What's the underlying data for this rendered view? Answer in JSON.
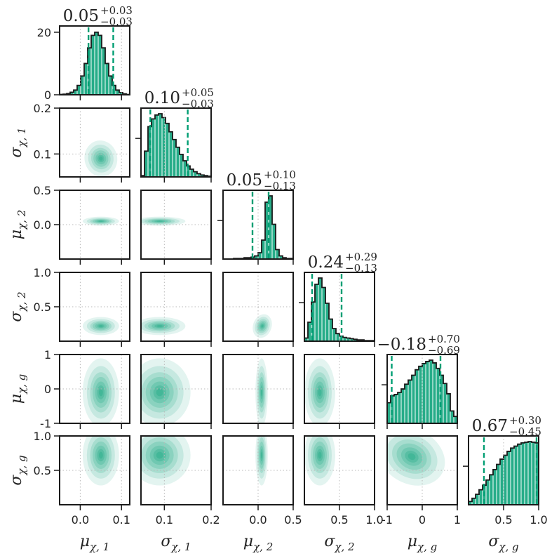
{
  "chart_data": {
    "type": "corner",
    "accent_color": "#009E73",
    "parameters": [
      {
        "base": "μ",
        "sub": "χ, 1",
        "range": [
          -0.05,
          0.12
        ],
        "ticks": [
          0.0,
          0.1
        ],
        "tick_labels": [
          "0.0",
          "0.1"
        ],
        "summary": {
          "median": "0.05",
          "plus": "+0.03",
          "minus": "−0.03"
        }
      },
      {
        "base": "σ",
        "sub": "χ, 1",
        "range": [
          0.05,
          0.2
        ],
        "ticks": [
          0.1,
          0.2
        ],
        "tick_labels": [
          "0.1",
          "0.2"
        ],
        "summary": {
          "median": "0.10",
          "plus": "+0.05",
          "minus": "−0.03"
        }
      },
      {
        "base": "μ",
        "sub": "χ, 2",
        "range": [
          -0.5,
          0.5
        ],
        "ticks": [
          0.0,
          0.5
        ],
        "tick_labels": [
          "0.0",
          "0.5"
        ],
        "summary": {
          "median": "0.05",
          "plus": "+0.10",
          "minus": "−0.13"
        }
      },
      {
        "base": "σ",
        "sub": "χ, 2",
        "range": [
          0.0,
          1.0
        ],
        "ticks": [
          0.5,
          1.0
        ],
        "tick_labels": [
          "0.5",
          "1.0"
        ],
        "summary": {
          "median": "0.24",
          "plus": "+0.29",
          "minus": "−0.13"
        }
      },
      {
        "base": "μ",
        "sub": "χ, g",
        "range": [
          -1.0,
          1.0
        ],
        "ticks": [
          -1,
          0,
          1
        ],
        "tick_labels": [
          "-1",
          "0",
          "1"
        ],
        "summary": {
          "median": "−0.18",
          "plus": "+0.70",
          "minus": "−0.69"
        }
      },
      {
        "base": "σ",
        "sub": "χ, g",
        "range": [
          0.0,
          1.0
        ],
        "ticks": [
          0.5,
          1.0
        ],
        "tick_labels": [
          "0.5",
          "1.0"
        ],
        "summary": {
          "median": "0.67",
          "plus": "+0.30",
          "minus": "−0.45"
        }
      }
    ],
    "y_axis_ranges": [
      [
        0,
        22
      ],
      [
        0.05,
        0.2
      ],
      [
        -0.5,
        0.5
      ],
      [
        0.0,
        1.0
      ],
      [
        -1.0,
        1.0
      ],
      [
        0.0,
        1.0
      ]
    ],
    "y_ticks": [
      {
        "ticks": [
          0,
          20
        ],
        "tick_labels": [
          "0",
          "20"
        ]
      },
      {
        "ticks": [
          0.1,
          0.2
        ],
        "tick_labels": [
          "0.1",
          "0.2"
        ]
      },
      {
        "ticks": [
          0.0,
          0.5
        ],
        "tick_labels": [
          "0.0",
          "0.5"
        ]
      },
      {
        "ticks": [
          0.5,
          1.0
        ],
        "tick_labels": [
          "0.5",
          "1.0"
        ]
      },
      {
        "ticks": [
          -1,
          0,
          1
        ],
        "tick_labels": [
          "-1",
          "0",
          "1"
        ]
      },
      {
        "ticks": [
          0.5,
          1.0
        ],
        "tick_labels": [
          "0.5",
          "1.0"
        ]
      }
    ],
    "diagonal_histograms": [
      {
        "edges": [
          -0.05,
          0.12
        ],
        "quantiles": [
          0.02,
          0.08
        ],
        "values": [
          0.1,
          0.2,
          0.4,
          0.8,
          1.5,
          3,
          6,
          10,
          15,
          19,
          20,
          19,
          15,
          10,
          6,
          3,
          1.5,
          0.7,
          0.3,
          0.1
        ]
      },
      {
        "edges": [
          0.05,
          0.2
        ],
        "quantiles": [
          0.07,
          0.15
        ],
        "values": [
          0.02,
          0.4,
          0.78,
          0.9,
          0.96,
          0.98,
          0.92,
          0.83,
          0.7,
          0.58,
          0.46,
          0.35,
          0.25,
          0.17,
          0.12,
          0.08,
          0.05,
          0.03,
          0.02,
          0.01
        ]
      },
      {
        "edges": [
          -0.5,
          0.5
        ],
        "quantiles": [
          -0.08,
          0.15
        ],
        "values": [
          0.0,
          0.0,
          0.0,
          0.01,
          0.01,
          0.01,
          0.02,
          0.02,
          0.03,
          0.05,
          0.1,
          0.3,
          0.9,
          1.0,
          0.55,
          0.15,
          0.05,
          0.02,
          0.01,
          0.01
        ]
      },
      {
        "edges": [
          0.0,
          1.0
        ],
        "quantiles": [
          0.11,
          0.53
        ],
        "values": [
          0.05,
          0.3,
          0.62,
          0.9,
          1.0,
          0.85,
          0.6,
          0.35,
          0.2,
          0.12,
          0.08,
          0.06,
          0.05,
          0.04,
          0.03,
          0.02,
          0.02,
          0.01,
          0.01,
          0.01
        ]
      },
      {
        "edges": [
          -1.0,
          1.0
        ],
        "quantiles": [
          -0.87,
          0.52
        ],
        "values": [
          0.3,
          0.4,
          0.42,
          0.45,
          0.5,
          0.57,
          0.63,
          0.7,
          0.78,
          0.83,
          0.87,
          0.9,
          0.92,
          0.88,
          0.8,
          0.7,
          0.58,
          0.43,
          0.18,
          0.1
        ]
      },
      {
        "edges": [
          0.0,
          1.0
        ],
        "quantiles": [
          0.22,
          0.97
        ],
        "values": [
          0.05,
          0.1,
          0.16,
          0.23,
          0.3,
          0.38,
          0.46,
          0.54,
          0.62,
          0.7,
          0.76,
          0.82,
          0.87,
          0.9,
          0.93,
          0.95,
          0.96,
          0.97,
          0.96,
          0.95
        ]
      }
    ],
    "joint_densities": [
      {
        "row": 1,
        "col": 0,
        "cx": 0.05,
        "cy": 0.09,
        "sx": 0.018,
        "sy": 0.018,
        "rho": 0.3
      },
      {
        "row": 2,
        "col": 0,
        "cx": 0.05,
        "cy": 0.05,
        "sx": 0.02,
        "sy": 0.03,
        "rho": 0.0
      },
      {
        "row": 2,
        "col": 1,
        "cx": 0.09,
        "cy": 0.05,
        "sx": 0.025,
        "sy": 0.03,
        "rho": 0.0
      },
      {
        "row": 3,
        "col": 0,
        "cx": 0.05,
        "cy": 0.22,
        "sx": 0.02,
        "sy": 0.06,
        "rho": 0.0
      },
      {
        "row": 3,
        "col": 1,
        "cx": 0.09,
        "cy": 0.22,
        "sx": 0.025,
        "sy": 0.06,
        "rho": 0.0
      },
      {
        "row": 3,
        "col": 2,
        "cx": 0.06,
        "cy": 0.22,
        "sx": 0.06,
        "sy": 0.08,
        "rho": -0.5
      },
      {
        "row": 4,
        "col": 0,
        "cx": 0.05,
        "cy": -0.1,
        "sx": 0.02,
        "sy": 0.45,
        "rho": 0.0
      },
      {
        "row": 4,
        "col": 1,
        "cx": 0.09,
        "cy": -0.1,
        "sx": 0.03,
        "sy": 0.45,
        "rho": 0.0
      },
      {
        "row": 4,
        "col": 2,
        "cx": 0.05,
        "cy": -0.1,
        "sx": 0.04,
        "sy": 0.45,
        "rho": 0.0
      },
      {
        "row": 4,
        "col": 3,
        "cx": 0.22,
        "cy": -0.1,
        "sx": 0.1,
        "sy": 0.45,
        "rho": 0.0
      },
      {
        "row": 5,
        "col": 0,
        "cx": 0.05,
        "cy": 0.72,
        "sx": 0.02,
        "sy": 0.2,
        "rho": 0.0
      },
      {
        "row": 5,
        "col": 1,
        "cx": 0.09,
        "cy": 0.72,
        "sx": 0.03,
        "sy": 0.2,
        "rho": 0.0
      },
      {
        "row": 5,
        "col": 2,
        "cx": 0.05,
        "cy": 0.72,
        "sx": 0.04,
        "sy": 0.2,
        "rho": 0.0
      },
      {
        "row": 5,
        "col": 3,
        "cx": 0.22,
        "cy": 0.72,
        "sx": 0.1,
        "sy": 0.2,
        "rho": 0.0
      },
      {
        "row": 5,
        "col": 4,
        "cx": -0.3,
        "cy": 0.7,
        "sx": 0.45,
        "sy": 0.18,
        "rho": -0.7
      }
    ],
    "grid": true
  }
}
